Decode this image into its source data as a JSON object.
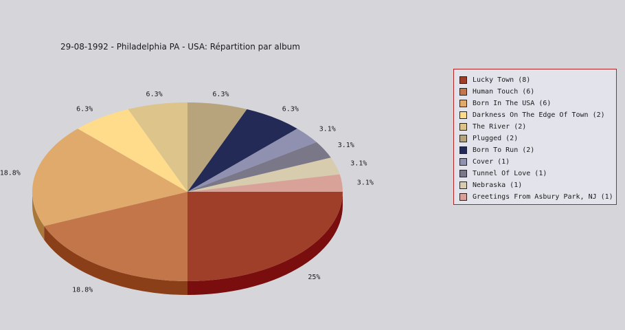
{
  "chart_data": {
    "type": "pie",
    "title": "29-08-1992 - Philadelphia PA - USA:  Répartition par album",
    "legend_position": "right",
    "slices": [
      {
        "label": "Lucky Town (8)",
        "value": 8,
        "percent_label": "25%",
        "color": "#a03f29",
        "side": "#7a0e0e"
      },
      {
        "label": "Human Touch (6)",
        "value": 6,
        "percent_label": "18.8%",
        "color": "#c2764a",
        "side": "#8b3f18"
      },
      {
        "label": "Born In The USA (6)",
        "value": 6,
        "percent_label": "18.8%",
        "color": "#e0aa6c",
        "side": "#a8783a"
      },
      {
        "label": "Darkness On The Edge Of Town (2)",
        "value": 2,
        "percent_label": "6.3%",
        "color": "#fedc8c",
        "side": "#c8a860"
      },
      {
        "label": "The River (2)",
        "value": 2,
        "percent_label": "6.3%",
        "color": "#dcc48a",
        "side": "#a8925a"
      },
      {
        "label": "Plugged (2)",
        "value": 2,
        "percent_label": "6.3%",
        "color": "#b8a47c",
        "side": "#8a7850"
      },
      {
        "label": "Born To Run (2)",
        "value": 2,
        "percent_label": "6.3%",
        "color": "#222a55",
        "side": "#10163a"
      },
      {
        "label": "Cover (1)",
        "value": 1,
        "percent_label": "3.1%",
        "color": "#9090b0",
        "side": "#606080"
      },
      {
        "label": "Tunnel Of Love (1)",
        "value": 1,
        "percent_label": "3.1%",
        "color": "#7a7888",
        "side": "#4e4c5a"
      },
      {
        "label": "Nebraska (1)",
        "value": 1,
        "percent_label": "3.1%",
        "color": "#d8ccae",
        "side": "#a89c80"
      },
      {
        "label": "Greetings From Asbury Park, NJ (1)",
        "value": 1,
        "percent_label": "3.1%",
        "color": "#d8a298",
        "side": "#a87268"
      }
    ]
  }
}
